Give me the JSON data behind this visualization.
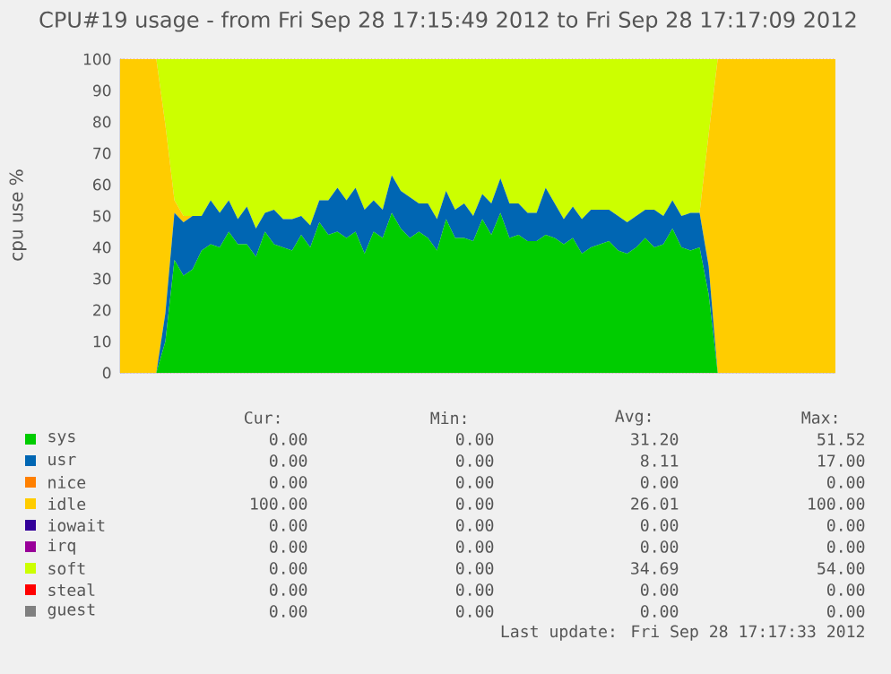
{
  "chart_data": {
    "type": "area",
    "stacked": true,
    "title": "CPU#19 usage - from Fri Sep 28 17:15:49 2012 to Fri Sep 28 17:17:09 2012",
    "ylabel": "cpu use %",
    "categories": [
      null,
      null,
      null,
      null,
      null,
      null,
      null,
      null,
      null,
      null,
      null,
      null,
      null,
      null,
      null,
      null,
      null,
      null,
      null,
      null,
      null,
      null,
      null,
      null,
      null,
      null,
      null,
      null,
      null,
      null,
      null,
      null,
      null,
      null,
      null,
      null,
      null,
      null,
      null,
      null,
      null,
      null,
      null,
      null,
      null,
      null,
      null,
      null,
      null,
      null,
      null,
      null,
      null,
      null,
      null,
      null,
      null,
      null,
      null,
      null,
      null,
      null,
      null,
      null,
      null,
      null,
      null,
      null,
      null,
      null,
      null,
      null,
      null,
      null,
      null,
      null,
      null,
      null,
      null,
      null
    ],
    "ylim": [
      0,
      100
    ],
    "yticks": [
      0,
      10,
      20,
      30,
      40,
      50,
      60,
      70,
      80,
      90,
      100
    ],
    "grid": "y",
    "legend": "bottom",
    "series": [
      {
        "name": "sys",
        "color": "#00cc00",
        "values": [
          0,
          0,
          0,
          0,
          0,
          10,
          36,
          31,
          33,
          39,
          41,
          40,
          45,
          41,
          41,
          37,
          45,
          41,
          40,
          39,
          44,
          40,
          48,
          44,
          45,
          43,
          45,
          38,
          45,
          43,
          51,
          46,
          43,
          45,
          43,
          39,
          49,
          43,
          43,
          42,
          49,
          44,
          51,
          43,
          44,
          42,
          42,
          44,
          43,
          41,
          43,
          38,
          40,
          41,
          42,
          39,
          38,
          40,
          43,
          40,
          41,
          46,
          40,
          39,
          40,
          25,
          0,
          0,
          0,
          0,
          0,
          0,
          0,
          0,
          0,
          0,
          0,
          0,
          0,
          0
        ]
      },
      {
        "name": "usr",
        "color": "#0066b3",
        "values": [
          0,
          0,
          0,
          0,
          0,
          9,
          15,
          17,
          17,
          11,
          14,
          11,
          10,
          8,
          12,
          9,
          6,
          11,
          9,
          10,
          6,
          7,
          7,
          11,
          14,
          12,
          14,
          14,
          10,
          9,
          12,
          12,
          13,
          9,
          11,
          10,
          9,
          9,
          11,
          8,
          8,
          10,
          11,
          11,
          10,
          9,
          9,
          15,
          11,
          8,
          10,
          11,
          12,
          11,
          10,
          11,
          10,
          10,
          9,
          12,
          9,
          9,
          10,
          12,
          11,
          9,
          0,
          0,
          0,
          0,
          0,
          0,
          0,
          0,
          0,
          0,
          0,
          0,
          0,
          0
        ]
      },
      {
        "name": "nice",
        "color": "#ff8000",
        "values": [
          null,
          null,
          null,
          null,
          null,
          null,
          null,
          null,
          null,
          null,
          null,
          null,
          null,
          null,
          null,
          null,
          null,
          null,
          null,
          null,
          null,
          null,
          null,
          null,
          null,
          null,
          null,
          null,
          null,
          null,
          null,
          null,
          null,
          null,
          null,
          null,
          null,
          null,
          null,
          null,
          null,
          null,
          null,
          null,
          null,
          null,
          null,
          null,
          null,
          null,
          null,
          null,
          null,
          null,
          null,
          null,
          null,
          null,
          null,
          null,
          null,
          null,
          null,
          null,
          null,
          null,
          null,
          null,
          null,
          null,
          null,
          null,
          null,
          null,
          null,
          null,
          null,
          null,
          null,
          null
        ]
      },
      {
        "name": "idle",
        "color": "#ffcc00",
        "values": [
          100,
          100,
          100,
          100,
          100,
          60,
          4,
          2,
          0,
          0,
          0,
          0,
          0,
          0,
          0,
          0,
          0,
          0,
          0,
          0,
          0,
          0,
          0,
          0,
          0,
          0,
          0,
          0,
          0,
          0,
          0,
          0,
          0,
          0,
          0,
          0,
          0,
          0,
          0,
          0,
          0,
          0,
          0,
          0,
          0,
          0,
          0,
          0,
          0,
          0,
          0,
          0,
          0,
          0,
          0,
          0,
          0,
          0,
          0,
          0,
          0,
          0,
          0,
          0,
          0,
          42,
          100,
          100,
          100,
          100,
          100,
          100,
          100,
          100,
          100,
          100,
          100,
          100,
          100,
          100
        ]
      },
      {
        "name": "iowait",
        "color": "#330099",
        "values": [
          null,
          null,
          null,
          null,
          null,
          null,
          null,
          null,
          null,
          null,
          null,
          null,
          null,
          null,
          null,
          null,
          null,
          null,
          null,
          null,
          null,
          null,
          null,
          null,
          null,
          null,
          null,
          null,
          null,
          null,
          null,
          null,
          null,
          null,
          null,
          null,
          null,
          null,
          null,
          null,
          null,
          null,
          null,
          null,
          null,
          null,
          null,
          null,
          null,
          null,
          null,
          null,
          null,
          null,
          null,
          null,
          null,
          null,
          null,
          null,
          null,
          null,
          null,
          null,
          null,
          null,
          null,
          null,
          null,
          null,
          null,
          null,
          null,
          null,
          null,
          null,
          null,
          null,
          null,
          null
        ]
      },
      {
        "name": "irq",
        "color": "#990099",
        "values": [
          null,
          null,
          null,
          null,
          null,
          null,
          null,
          null,
          null,
          null,
          null,
          null,
          null,
          null,
          null,
          null,
          null,
          null,
          null,
          null,
          null,
          null,
          null,
          null,
          null,
          null,
          null,
          null,
          null,
          null,
          null,
          null,
          null,
          null,
          null,
          null,
          null,
          null,
          null,
          null,
          null,
          null,
          null,
          null,
          null,
          null,
          null,
          null,
          null,
          null,
          null,
          null,
          null,
          null,
          null,
          null,
          null,
          null,
          null,
          null,
          null,
          null,
          null,
          null,
          null,
          null,
          null,
          null,
          null,
          null,
          null,
          null,
          null,
          null,
          null,
          null,
          null,
          null,
          null,
          null
        ]
      },
      {
        "name": "soft",
        "color": "#ccff00",
        "values": [
          0,
          0,
          0,
          0,
          0,
          21,
          45,
          50,
          50,
          50,
          45,
          49,
          45,
          51,
          47,
          54,
          49,
          48,
          51,
          51,
          50,
          53,
          45,
          45,
          41,
          45,
          41,
          48,
          45,
          48,
          37,
          42,
          44,
          46,
          46,
          51,
          42,
          48,
          46,
          50,
          43,
          46,
          38,
          46,
          46,
          49,
          49,
          41,
          46,
          51,
          47,
          51,
          48,
          48,
          48,
          50,
          52,
          50,
          48,
          48,
          50,
          45,
          50,
          49,
          49,
          24,
          0,
          0,
          0,
          0,
          0,
          0,
          0,
          0,
          0,
          0,
          0,
          0,
          0,
          0
        ]
      },
      {
        "name": "steal",
        "color": "#ff0000",
        "values": [
          null,
          null,
          null,
          null,
          null,
          null,
          null,
          null,
          null,
          null,
          null,
          null,
          null,
          null,
          null,
          null,
          null,
          null,
          null,
          null,
          null,
          null,
          null,
          null,
          null,
          null,
          null,
          null,
          null,
          null,
          null,
          null,
          null,
          null,
          null,
          null,
          null,
          null,
          null,
          null,
          null,
          null,
          null,
          null,
          null,
          null,
          null,
          null,
          null,
          null,
          null,
          null,
          null,
          null,
          null,
          null,
          null,
          null,
          null,
          null,
          null,
          null,
          null,
          null,
          null,
          null,
          null,
          null,
          null,
          null,
          null,
          null,
          null,
          null,
          null,
          null,
          null,
          null,
          null,
          null
        ]
      },
      {
        "name": "guest",
        "color": "#808080",
        "values": [
          null,
          null,
          null,
          null,
          null,
          null,
          null,
          null,
          null,
          null,
          null,
          null,
          null,
          null,
          null,
          null,
          null,
          null,
          null,
          null,
          null,
          null,
          null,
          null,
          null,
          null,
          null,
          null,
          null,
          null,
          null,
          null,
          null,
          null,
          null,
          null,
          null,
          null,
          null,
          null,
          null,
          null,
          null,
          null,
          null,
          null,
          null,
          null,
          null,
          null,
          null,
          null,
          null,
          null,
          null,
          null,
          null,
          null,
          null,
          null,
          null,
          null,
          null,
          null,
          null,
          null,
          null,
          null,
          null,
          null,
          null,
          null,
          null,
          null,
          null,
          null,
          null,
          null,
          null,
          null
        ]
      }
    ],
    "annotations": [
      "Cur:",
      "Min:",
      "Avg:",
      "Max:",
      "0.00",
      "0.00",
      "31.20",
      "51.52",
      "0.00",
      "0.00",
      "8.11",
      "17.00",
      "0.00",
      "0.00",
      "0.00",
      "0.00",
      "100.00",
      "0.00",
      "26.01",
      "100.00",
      "0.00",
      "0.00",
      "0.00",
      "0.00",
      "0.00",
      "0.00",
      "0.00",
      "0.00",
      "0.00",
      "0.00",
      "34.69",
      "54.00",
      "0.00",
      "0.00",
      "0.00",
      "0.00",
      "0.00",
      "0.00",
      "0.00",
      "0.00",
      "Last update: Fri Sep 28 17:17:33 2012"
    ]
  }
}
